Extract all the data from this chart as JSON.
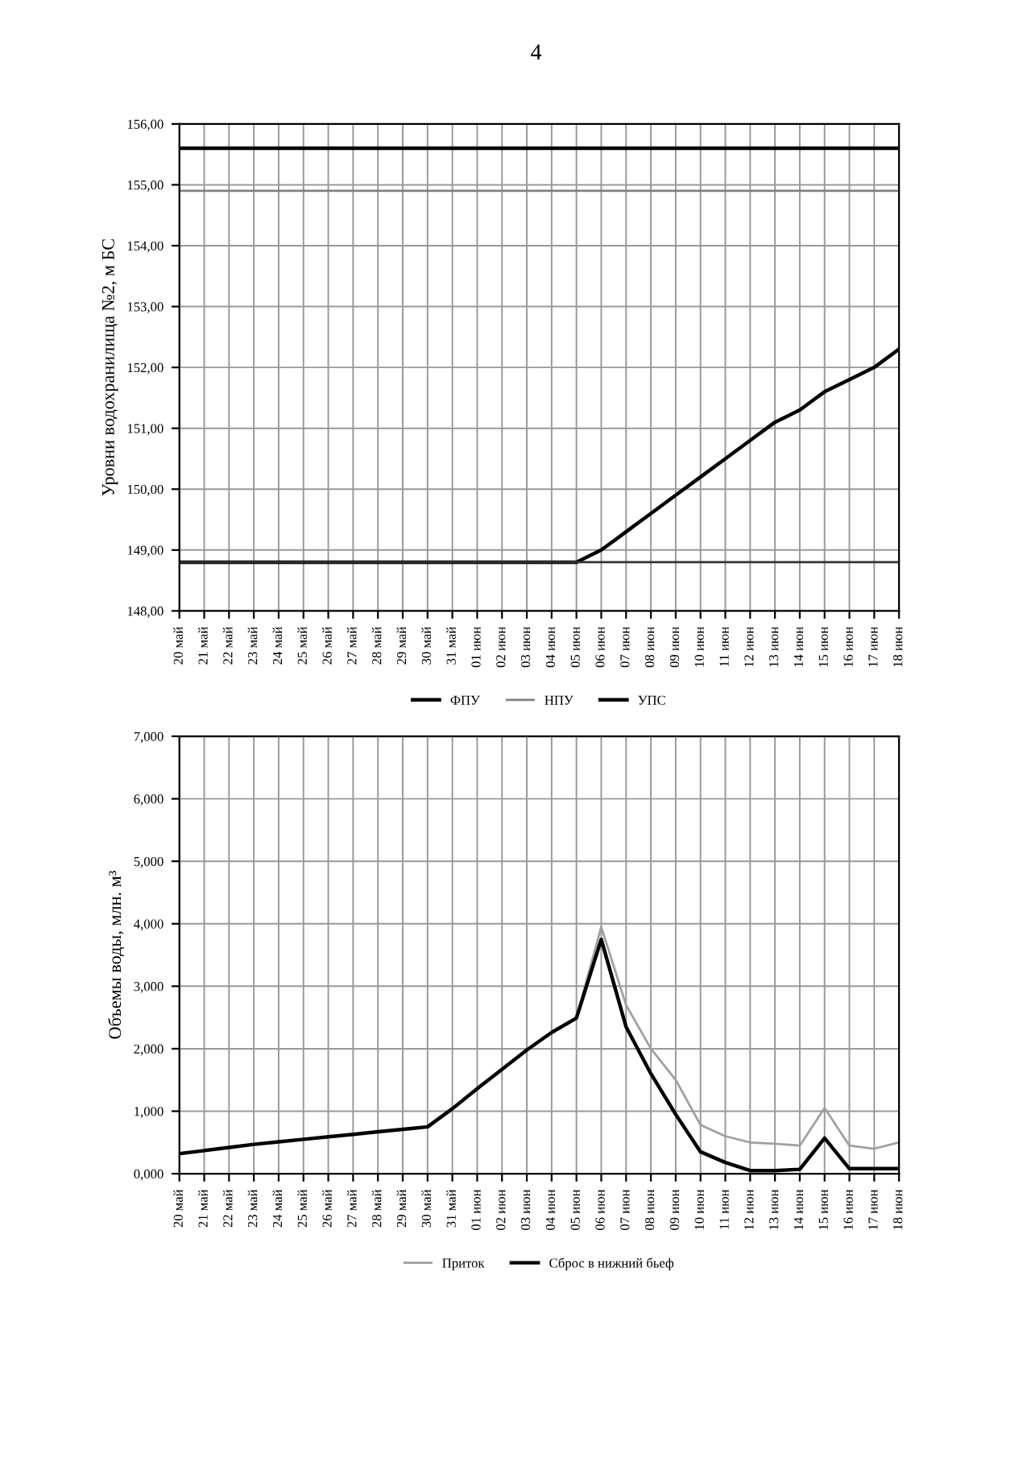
{
  "chart_data": [
    {
      "type": "line",
      "ylabel": "Уровни водохранилища №2, м БС",
      "annotations": [
        "4"
      ],
      "grid": true,
      "legend": "bottom",
      "marker": "none",
      "line_style": "solid",
      "categories": [
        "20 май",
        "21 май",
        "22 май",
        "23 май",
        "24 май",
        "25 май",
        "26 май",
        "27 май",
        "28 май",
        "29 май",
        "30 май",
        "31 май",
        "01 июн",
        "02 июн",
        "03 июн",
        "04 июн",
        "05 июн",
        "06 июн",
        "07 июн",
        "08 июн",
        "09 июн",
        "10 июн",
        "11 июн",
        "12 июн",
        "13 июн",
        "14 июн",
        "15 июн",
        "16 июн",
        "17 июн",
        "18 июн"
      ],
      "ylim": [
        148,
        156
      ],
      "yticks": [
        {
          "value": 148,
          "label": "148,00"
        },
        {
          "value": 149,
          "label": "149,00"
        },
        {
          "value": 150,
          "label": "150,00"
        },
        {
          "value": 151,
          "label": "151,00"
        },
        {
          "value": 152,
          "label": "152,00"
        },
        {
          "value": 153,
          "label": "153,00"
        },
        {
          "value": 154,
          "label": "154,00"
        },
        {
          "value": 155,
          "label": "155,00"
        },
        {
          "value": 156,
          "label": "156,00"
        }
      ],
      "series": [
        {
          "name": "ФПУ",
          "color": "#000000",
          "values": [
            155.6,
            155.6,
            155.6,
            155.6,
            155.6,
            155.6,
            155.6,
            155.6,
            155.6,
            155.6,
            155.6,
            155.6,
            155.6,
            155.6,
            155.6,
            155.6,
            155.6,
            155.6,
            155.6,
            155.6,
            155.6,
            155.6,
            155.6,
            155.6,
            155.6,
            155.6,
            155.6,
            155.6,
            155.6,
            155.6
          ]
        },
        {
          "name": "НПУ",
          "color": "#808080",
          "values": [
            154.9,
            154.9,
            154.9,
            154.9,
            154.9,
            154.9,
            154.9,
            154.9,
            154.9,
            154.9,
            154.9,
            154.9,
            154.9,
            154.9,
            154.9,
            154.9,
            154.9,
            154.9,
            154.9,
            154.9,
            154.9,
            154.9,
            154.9,
            154.9,
            154.9,
            154.9,
            154.9,
            154.9,
            154.9,
            154.9
          ]
        },
        {
          "name": "УПС",
          "color": "#000000",
          "values": [
            148.8,
            148.8,
            148.8,
            148.8,
            148.8,
            148.8,
            148.8,
            148.8,
            148.8,
            148.8,
            148.8,
            148.8,
            148.8,
            148.8,
            148.8,
            148.8,
            148.8,
            149.0,
            149.3,
            149.6,
            149.9,
            150.2,
            150.5,
            150.8,
            151.1,
            151.3,
            151.6,
            151.8,
            152.0,
            152.3
          ]
        },
        {
          "color": "#333333",
          "values": [
            148.8,
            148.8,
            148.8,
            148.8,
            148.8,
            148.8,
            148.8,
            148.8,
            148.8,
            148.8,
            148.8,
            148.8,
            148.8,
            148.8,
            148.8,
            148.8,
            148.8,
            148.8,
            148.8,
            148.8,
            148.8,
            148.8,
            148.8,
            148.8,
            148.8,
            148.8,
            148.8,
            148.8,
            148.8,
            148.8
          ]
        }
      ]
    },
    {
      "type": "line",
      "ylabel": "Объемы воды, млн. м³",
      "grid": true,
      "legend": "bottom",
      "marker": "none",
      "line_style": "solid",
      "categories": [
        "20 май",
        "21 май",
        "22 май",
        "23 май",
        "24 май",
        "25 май",
        "26 май",
        "27 май",
        "28 май",
        "29 май",
        "30 май",
        "31 май",
        "01 июн",
        "02 июн",
        "03 июн",
        "04 июн",
        "05 июн",
        "06 июн",
        "07 июн",
        "08 июн",
        "09 июн",
        "10 июн",
        "11 июн",
        "12 июн",
        "13 июн",
        "14 июн",
        "15 июн",
        "16 июн",
        "17 июн",
        "18 июн"
      ],
      "ylim": [
        0,
        7
      ],
      "yticks": [
        {
          "value": 0,
          "label": "0,000"
        },
        {
          "value": 1,
          "label": "1,000"
        },
        {
          "value": 2,
          "label": "2,000"
        },
        {
          "value": 3,
          "label": "3,000"
        },
        {
          "value": 4,
          "label": "4,000"
        },
        {
          "value": 5,
          "label": "5,000"
        },
        {
          "value": 6,
          "label": "6,000"
        },
        {
          "value": 7,
          "label": "7,000"
        }
      ],
      "series": [
        {
          "name": "Приток",
          "color": "#a0a0a0",
          "values": [
            0.32,
            0.37,
            0.42,
            0.47,
            0.51,
            0.55,
            0.59,
            0.63,
            0.67,
            0.71,
            0.75,
            1.04,
            1.36,
            1.67,
            1.98,
            2.26,
            2.5,
            3.95,
            2.7,
            2.0,
            1.5,
            0.78,
            0.6,
            0.5,
            0.48,
            0.45,
            1.05,
            0.45,
            0.4,
            0.5
          ]
        },
        {
          "name": "Сброс в нижний бьеф",
          "color": "#000000",
          "values": [
            0.32,
            0.37,
            0.42,
            0.47,
            0.51,
            0.55,
            0.59,
            0.63,
            0.67,
            0.71,
            0.75,
            1.04,
            1.36,
            1.67,
            1.98,
            2.26,
            2.49,
            3.75,
            2.35,
            1.6,
            0.95,
            0.35,
            0.18,
            0.05,
            0.05,
            0.07,
            0.57,
            0.08,
            0.08,
            0.08
          ]
        }
      ]
    }
  ]
}
